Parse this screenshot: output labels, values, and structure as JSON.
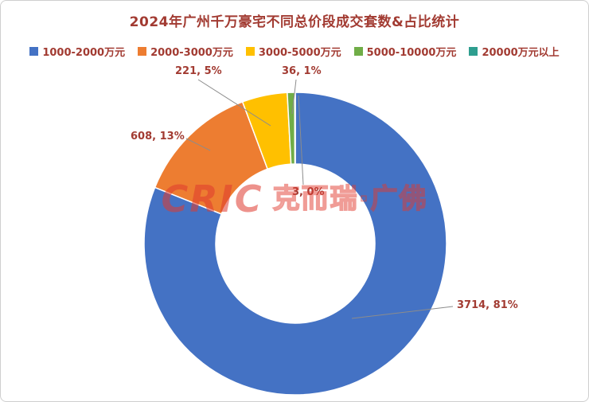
{
  "title": "2024年广州千万豪宅不同总价段成交套数&占比统计",
  "watermark": {
    "logo": "CRIC",
    "text": "克而瑞·广佛"
  },
  "chart_data": {
    "type": "pie",
    "subtype": "donut",
    "title": "2024年广州千万豪宅不同总价段成交套数&占比统计",
    "legend_position": "top",
    "categories": [
      "1000-2000万元",
      "2000-3000万元",
      "3000-5000万元",
      "5000-10000万元",
      "20000万元以上"
    ],
    "values": [
      3714,
      608,
      221,
      36,
      3
    ],
    "percents": [
      81,
      13,
      5,
      1,
      0
    ],
    "labels": [
      "3714, 81%",
      "608, 13%",
      "221, 5%",
      "36, 1%",
      "3, 0%"
    ],
    "colors": [
      "#4472c4",
      "#ed7d31",
      "#ffc000",
      "#70ad47",
      "#2e9e8f"
    ],
    "start_angle_deg": 0,
    "direction": "clockwise"
  }
}
